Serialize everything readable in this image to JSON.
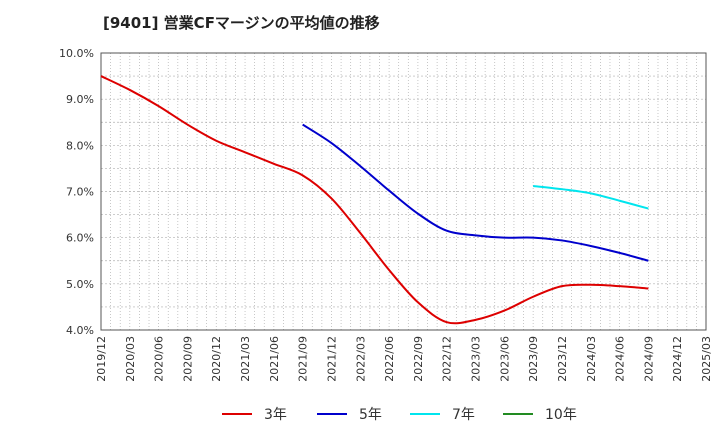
{
  "chart_data": {
    "type": "line",
    "title": "[9401]  営業CFマージンの平均値の推移",
    "xlabel": "",
    "ylabel": "",
    "ylim": [
      4.0,
      10.0
    ],
    "y_ticks": [
      "10.0%",
      "9.0%",
      "8.0%",
      "7.0%",
      "6.0%",
      "5.0%",
      "4.0%"
    ],
    "y_tick_values": [
      10,
      9,
      8,
      7,
      6,
      5,
      4
    ],
    "x_start": "2019/12",
    "x_end": "2025/03",
    "x_ticks": [
      "2019/12",
      "2020/03",
      "2020/06",
      "2020/09",
      "2020/12",
      "2021/03",
      "2021/06",
      "2021/09",
      "2021/12",
      "2022/03",
      "2022/06",
      "2022/09",
      "2022/12",
      "2023/03",
      "2023/06",
      "2023/09",
      "2023/12",
      "2024/03",
      "2024/06",
      "2024/09",
      "2024/12",
      "2025/03"
    ],
    "grid": true,
    "legend_position": "bottom",
    "series": [
      {
        "name": "3年",
        "color": "#dd0000",
        "points": [
          [
            "2019/12",
            9.5
          ],
          [
            "2020/03",
            9.2
          ],
          [
            "2020/06",
            8.85
          ],
          [
            "2020/09",
            8.45
          ],
          [
            "2020/12",
            8.1
          ],
          [
            "2021/03",
            7.85
          ],
          [
            "2021/06",
            7.6
          ],
          [
            "2021/09",
            7.35
          ],
          [
            "2021/12",
            6.85
          ],
          [
            "2022/03",
            6.1
          ],
          [
            "2022/06",
            5.3
          ],
          [
            "2022/09",
            4.6
          ],
          [
            "2022/12",
            4.17
          ],
          [
            "2023/03",
            4.22
          ],
          [
            "2023/06",
            4.42
          ],
          [
            "2023/09",
            4.72
          ],
          [
            "2023/12",
            4.95
          ],
          [
            "2024/03",
            4.98
          ],
          [
            "2024/06",
            4.95
          ],
          [
            "2024/09",
            4.9
          ]
        ]
      },
      {
        "name": "5年",
        "color": "#0000cc",
        "points": [
          [
            "2021/09",
            8.45
          ],
          [
            "2021/12",
            8.05
          ],
          [
            "2022/03",
            7.55
          ],
          [
            "2022/06",
            7.02
          ],
          [
            "2022/09",
            6.52
          ],
          [
            "2022/12",
            6.15
          ],
          [
            "2023/03",
            6.05
          ],
          [
            "2023/06",
            6.0
          ],
          [
            "2023/09",
            6.0
          ],
          [
            "2023/12",
            5.94
          ],
          [
            "2024/03",
            5.82
          ],
          [
            "2024/06",
            5.67
          ],
          [
            "2024/09",
            5.5
          ]
        ]
      },
      {
        "name": "7年",
        "color": "#00e5ee",
        "points": [
          [
            "2023/09",
            7.12
          ],
          [
            "2023/12",
            7.05
          ],
          [
            "2024/03",
            6.96
          ],
          [
            "2024/06",
            6.8
          ],
          [
            "2024/09",
            6.63
          ]
        ]
      },
      {
        "name": "10年",
        "color": "#228b22",
        "points": []
      }
    ]
  }
}
